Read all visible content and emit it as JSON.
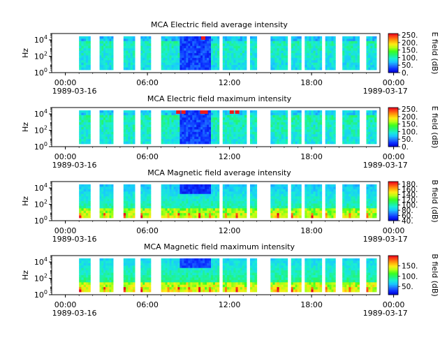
{
  "chart_data": [
    {
      "type": "heatmap",
      "title": "MCA  Electric field average intensity",
      "ylabel": "Hz",
      "yscale": "log",
      "ylim": [
        1,
        60000
      ],
      "yticks": [
        {
          "value": 1,
          "base": "10",
          "exp": "0"
        },
        {
          "value": 100,
          "base": "10",
          "exp": "2"
        },
        {
          "value": 10000,
          "base": "10",
          "exp": "4"
        }
      ],
      "xlim": [
        0,
        1440
      ],
      "xticks": [
        {
          "t": 60,
          "label": "00:00"
        },
        {
          "t": 420,
          "label": "06:00"
        },
        {
          "t": 780,
          "label": "12:00"
        },
        {
          "t": 1140,
          "label": "18:00"
        },
        {
          "t": 1500,
          "label": "00:00"
        }
      ],
      "date_start": "1989-03-16",
      "date_end": "1989-03-17",
      "colorbar": {
        "label": "E field (dB)",
        "range": [
          0,
          260
        ],
        "ticks": [
          {
            "v": 0,
            "label": "0."
          },
          {
            "v": 50,
            "label": "50."
          },
          {
            "v": 100,
            "label": "100."
          },
          {
            "v": 150,
            "label": "150."
          },
          {
            "v": 200,
            "label": "200."
          },
          {
            "v": 250,
            "label": "250."
          }
        ]
      },
      "peak_events": [
        {
          "t": 665
        }
      ]
    },
    {
      "type": "heatmap",
      "title": "MCA  Electric field maximum intensity",
      "ylabel": "Hz",
      "yscale": "log",
      "ylim": [
        1,
        60000
      ],
      "yticks": [
        {
          "value": 1,
          "base": "10",
          "exp": "0"
        },
        {
          "value": 100,
          "base": "10",
          "exp": "2"
        },
        {
          "value": 10000,
          "base": "10",
          "exp": "4"
        }
      ],
      "xlim": [
        0,
        1440
      ],
      "xticks": [
        {
          "t": 60,
          "label": "00:00"
        },
        {
          "t": 420,
          "label": "06:00"
        },
        {
          "t": 780,
          "label": "12:00"
        },
        {
          "t": 1140,
          "label": "18:00"
        },
        {
          "t": 1500,
          "label": "00:00"
        }
      ],
      "date_start": "1989-03-16",
      "date_end": "1989-03-17",
      "colorbar": {
        "label": "E field (dB)",
        "range": [
          0,
          260
        ],
        "ticks": [
          {
            "v": 0,
            "label": "0."
          },
          {
            "v": 50,
            "label": "50."
          },
          {
            "v": 100,
            "label": "100."
          },
          {
            "v": 150,
            "label": "150."
          },
          {
            "v": 200,
            "label": "200."
          },
          {
            "v": 250,
            "label": "250."
          }
        ]
      },
      "peak_events": [
        {
          "t": 555
        },
        {
          "t": 578
        },
        {
          "t": 660
        },
        {
          "t": 668
        },
        {
          "t": 676
        },
        {
          "t": 790
        },
        {
          "t": 814
        }
      ]
    },
    {
      "type": "heatmap",
      "title": "MCA  Magnetic field average intensity",
      "ylabel": "Hz",
      "yscale": "log",
      "ylim": [
        1,
        60000
      ],
      "yticks": [
        {
          "value": 1,
          "base": "10",
          "exp": "0"
        },
        {
          "value": 100,
          "base": "10",
          "exp": "2"
        },
        {
          "value": 10000,
          "base": "10",
          "exp": "4"
        }
      ],
      "xlim": [
        0,
        1440
      ],
      "xticks": [
        {
          "t": 60,
          "label": "00:00"
        },
        {
          "t": 420,
          "label": "06:00"
        },
        {
          "t": 780,
          "label": "12:00"
        },
        {
          "t": 1140,
          "label": "18:00"
        },
        {
          "t": 1500,
          "label": "00:00"
        }
      ],
      "date_start": "1989-03-16",
      "date_end": "1989-03-17",
      "colorbar": {
        "label": "B field (dB)",
        "range": [
          40,
          190
        ],
        "ticks": [
          {
            "v": 40,
            "label": "40."
          },
          {
            "v": 60,
            "label": "60."
          },
          {
            "v": 80,
            "label": "80."
          },
          {
            "v": 100,
            "label": "100."
          },
          {
            "v": 120,
            "label": "120."
          },
          {
            "v": 140,
            "label": "140."
          },
          {
            "v": 160,
            "label": "160."
          },
          {
            "v": 180,
            "label": "180."
          }
        ]
      },
      "peak_events": []
    },
    {
      "type": "heatmap",
      "title": "MCA  Magnetic field maximum intensity",
      "ylabel": "Hz",
      "yscale": "log",
      "ylim": [
        1,
        60000
      ],
      "yticks": [
        {
          "value": 1,
          "base": "10",
          "exp": "0"
        },
        {
          "value": 100,
          "base": "10",
          "exp": "2"
        },
        {
          "value": 10000,
          "base": "10",
          "exp": "4"
        }
      ],
      "xlim": [
        0,
        1440
      ],
      "xticks": [
        {
          "t": 60,
          "label": "00:00"
        },
        {
          "t": 420,
          "label": "06:00"
        },
        {
          "t": 780,
          "label": "12:00"
        },
        {
          "t": 1140,
          "label": "18:00"
        },
        {
          "t": 1500,
          "label": "00:00"
        }
      ],
      "date_start": "1989-03-16",
      "date_end": "1989-03-17",
      "colorbar": {
        "label": "B field (dB)",
        "range": [
          10,
          200
        ],
        "ticks": [
          {
            "v": 50,
            "label": "50."
          },
          {
            "v": 100,
            "label": "100."
          },
          {
            "v": 150,
            "label": "150."
          }
        ]
      },
      "peak_events": []
    }
  ],
  "data_coverage": [
    {
      "start": 120,
      "end": 170
    },
    {
      "start": 210,
      "end": 270
    },
    {
      "start": 315,
      "end": 365
    },
    {
      "start": 390,
      "end": 435
    },
    {
      "start": 480,
      "end": 735
    },
    {
      "start": 750,
      "end": 855
    },
    {
      "start": 870,
      "end": 900
    },
    {
      "start": 960,
      "end": 1035
    },
    {
      "start": 1050,
      "end": 1095
    },
    {
      "start": 1110,
      "end": 1185
    },
    {
      "start": 1200,
      "end": 1245
    },
    {
      "start": 1275,
      "end": 1350
    },
    {
      "start": 1380,
      "end": 1425
    }
  ],
  "colormap": [
    "#0000cc",
    "#0a2cff",
    "#1e78ff",
    "#19c8ff",
    "#19eed2",
    "#23f573",
    "#3cff1e",
    "#b4ff14",
    "#ffeb14",
    "#ffa50a",
    "#ff5014",
    "#e6001e"
  ]
}
